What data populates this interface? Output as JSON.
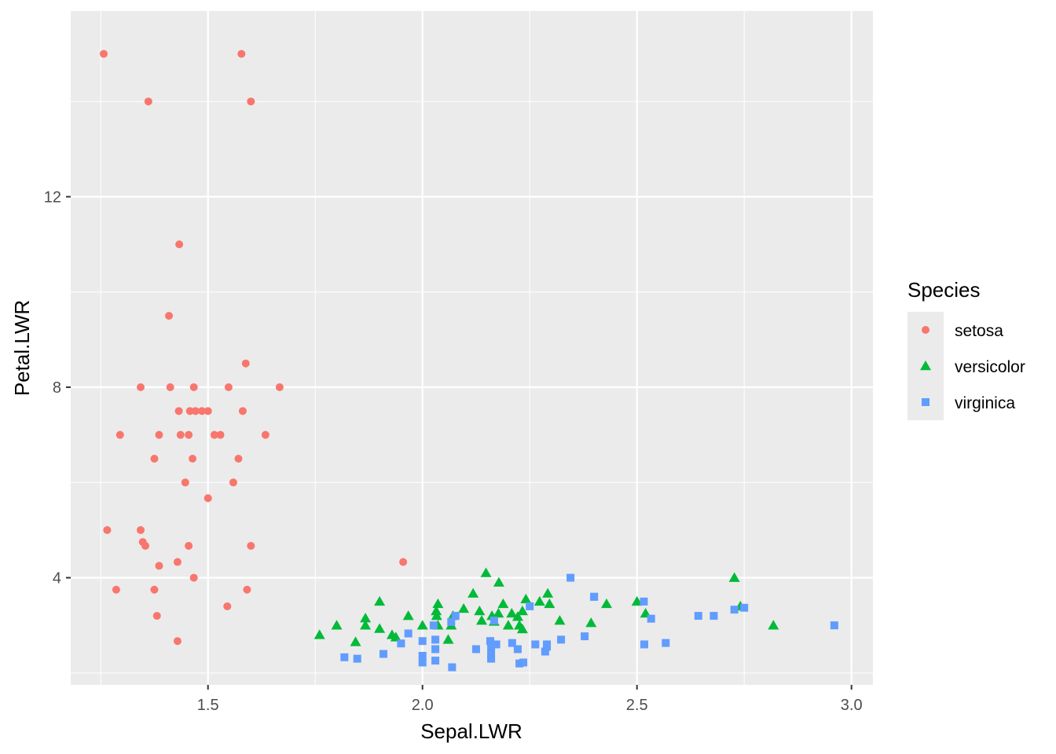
{
  "chart_data": {
    "type": "scatter",
    "title": "",
    "xlabel": "Sepal.LWR",
    "ylabel": "Petal.LWR",
    "xlim": [
      1.18,
      3.05
    ],
    "ylim": [
      1.75,
      15.9
    ],
    "x_ticks": [
      1.5,
      2.0,
      2.5,
      3.0
    ],
    "x_tick_labels": [
      "1.5",
      "2.0",
      "2.5",
      "3.0"
    ],
    "y_ticks": [
      4,
      8,
      12
    ],
    "y_tick_labels": [
      "4",
      "8",
      "12"
    ],
    "grid": true,
    "background": "#EBEBEB",
    "legend": {
      "title": "Species",
      "placement": "right"
    },
    "series": [
      {
        "name": "setosa",
        "color": "#F8766D",
        "shape": "circle",
        "points": [
          [
            1.257,
            15.0
          ],
          [
            1.578,
            15.0
          ],
          [
            1.361,
            14.0
          ],
          [
            1.6,
            14.0
          ],
          [
            1.433,
            11.0
          ],
          [
            1.409,
            9.5
          ],
          [
            1.588,
            8.5
          ],
          [
            1.343,
            8.0
          ],
          [
            1.412,
            8.0
          ],
          [
            1.467,
            8.0
          ],
          [
            1.548,
            8.0
          ],
          [
            1.667,
            8.0
          ],
          [
            1.432,
            7.5
          ],
          [
            1.458,
            7.5
          ],
          [
            1.471,
            7.5
          ],
          [
            1.486,
            7.5
          ],
          [
            1.5,
            7.5
          ],
          [
            1.581,
            7.5
          ],
          [
            1.295,
            7.0
          ],
          [
            1.386,
            7.0
          ],
          [
            1.436,
            7.0
          ],
          [
            1.455,
            7.0
          ],
          [
            1.515,
            7.0
          ],
          [
            1.529,
            7.0
          ],
          [
            1.634,
            7.0
          ],
          [
            1.375,
            6.5
          ],
          [
            1.464,
            6.5
          ],
          [
            1.571,
            6.5
          ],
          [
            1.447,
            6.0
          ],
          [
            1.559,
            6.0
          ],
          [
            1.5,
            5.67
          ],
          [
            1.265,
            5.0
          ],
          [
            1.343,
            5.0
          ],
          [
            1.348,
            4.75
          ],
          [
            1.354,
            4.67
          ],
          [
            1.455,
            4.67
          ],
          [
            1.6,
            4.67
          ],
          [
            1.955,
            4.33
          ],
          [
            1.386,
            4.25
          ],
          [
            1.429,
            4.33
          ],
          [
            1.467,
            4.0
          ],
          [
            1.286,
            3.75
          ],
          [
            1.375,
            3.75
          ],
          [
            1.591,
            3.75
          ],
          [
            1.545,
            3.4
          ],
          [
            1.381,
            3.2
          ],
          [
            1.429,
            2.67
          ]
        ]
      },
      {
        "name": "versicolor",
        "color": "#00BA38",
        "shape": "triangle",
        "points": [
          [
            2.148,
            4.1
          ],
          [
            2.178,
            3.9
          ],
          [
            2.727,
            4.0
          ],
          [
            2.118,
            3.67
          ],
          [
            2.292,
            3.67
          ],
          [
            2.241,
            3.55
          ],
          [
            2.273,
            3.5
          ],
          [
            1.9,
            3.5
          ],
          [
            2.5,
            3.5
          ],
          [
            2.036,
            3.45
          ],
          [
            2.188,
            3.45
          ],
          [
            2.296,
            3.45
          ],
          [
            2.096,
            3.35
          ],
          [
            2.032,
            3.3
          ],
          [
            2.133,
            3.3
          ],
          [
            2.233,
            3.3
          ],
          [
            2.033,
            3.2
          ],
          [
            2.162,
            3.2
          ],
          [
            2.177,
            3.25
          ],
          [
            2.208,
            3.25
          ],
          [
            2.52,
            3.25
          ],
          [
            1.967,
            3.2
          ],
          [
            2.222,
            3.18
          ],
          [
            2.741,
            3.4
          ],
          [
            2.138,
            3.1
          ],
          [
            2.036,
            3.0
          ],
          [
            2.067,
            3.0
          ],
          [
            2.071,
            3.2
          ],
          [
            2.2,
            3.0
          ],
          [
            2.226,
            3.0
          ],
          [
            1.8,
            3.0
          ],
          [
            1.867,
            3.15
          ],
          [
            1.867,
            3.0
          ],
          [
            2.32,
            3.1
          ],
          [
            2.393,
            3.05
          ],
          [
            2.429,
            3.45
          ],
          [
            1.9,
            2.93
          ],
          [
            2.0,
            3.0
          ],
          [
            2.818,
            3.0
          ],
          [
            2.233,
            2.92
          ],
          [
            1.929,
            2.8
          ],
          [
            1.938,
            2.75
          ],
          [
            2.06,
            2.7
          ],
          [
            1.844,
            2.65
          ],
          [
            1.76,
            2.8
          ],
          [
            2.167,
            3.08
          ]
        ]
      },
      {
        "name": "virginica",
        "color": "#619CFF",
        "shape": "square",
        "points": [
          [
            2.345,
            4.0
          ],
          [
            2.4,
            3.6
          ],
          [
            2.516,
            3.5
          ],
          [
            2.25,
            3.4
          ],
          [
            2.75,
            3.37
          ],
          [
            2.727,
            3.33
          ],
          [
            2.533,
            3.14
          ],
          [
            2.643,
            3.2
          ],
          [
            2.679,
            3.2
          ],
          [
            2.96,
            3.0
          ],
          [
            2.077,
            3.2
          ],
          [
            2.167,
            3.1
          ],
          [
            2.026,
            3.0
          ],
          [
            2.067,
            3.07
          ],
          [
            1.967,
            2.83
          ],
          [
            2.0,
            2.67
          ],
          [
            2.03,
            2.7
          ],
          [
            2.209,
            2.63
          ],
          [
            2.29,
            2.6
          ],
          [
            2.263,
            2.6
          ],
          [
            2.158,
            2.67
          ],
          [
            2.172,
            2.6
          ],
          [
            2.378,
            2.77
          ],
          [
            2.323,
            2.7
          ],
          [
            2.517,
            2.6
          ],
          [
            2.567,
            2.63
          ],
          [
            1.95,
            2.62
          ],
          [
            2.125,
            2.5
          ],
          [
            2.222,
            2.5
          ],
          [
            2.03,
            2.5
          ],
          [
            2.286,
            2.45
          ],
          [
            2.16,
            2.4
          ],
          [
            2.16,
            2.3
          ],
          [
            1.909,
            2.4
          ],
          [
            1.818,
            2.33
          ],
          [
            1.848,
            2.3
          ],
          [
            2.0,
            2.36
          ],
          [
            2.0,
            2.22
          ],
          [
            2.03,
            2.26
          ],
          [
            2.226,
            2.2
          ],
          [
            2.235,
            2.22
          ],
          [
            2.069,
            2.12
          ],
          [
            2.16,
            2.55
          ],
          [
            2.29,
            2.55
          ],
          [
            2.4,
            3.6
          ]
        ]
      }
    ]
  }
}
